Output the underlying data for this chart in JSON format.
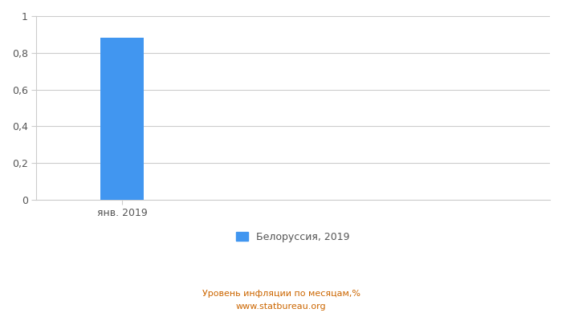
{
  "categories": [
    "янв. 2019"
  ],
  "values": [
    0.88
  ],
  "bar_color": "#4196F0",
  "ylim": [
    0,
    1.0
  ],
  "yticks": [
    0,
    0.2,
    0.4,
    0.6,
    0.8,
    1.0
  ],
  "ytick_labels": [
    "0",
    "0,2",
    "0,4",
    "0,6",
    "0,8",
    "1"
  ],
  "legend_label": "Белоруссия, 2019",
  "footnote_line1": "Уровень инфляции по месяцам,%",
  "footnote_line2": "www.statbureau.org",
  "background_color": "#ffffff",
  "grid_color": "#cccccc",
  "bar_width": 0.5,
  "tick_color": "#555555",
  "footnote_color": "#cc6600",
  "legend_fontsize": 9,
  "footnote_fontsize": 8,
  "tick_fontsize": 9,
  "xlim": [
    -1,
    5
  ]
}
